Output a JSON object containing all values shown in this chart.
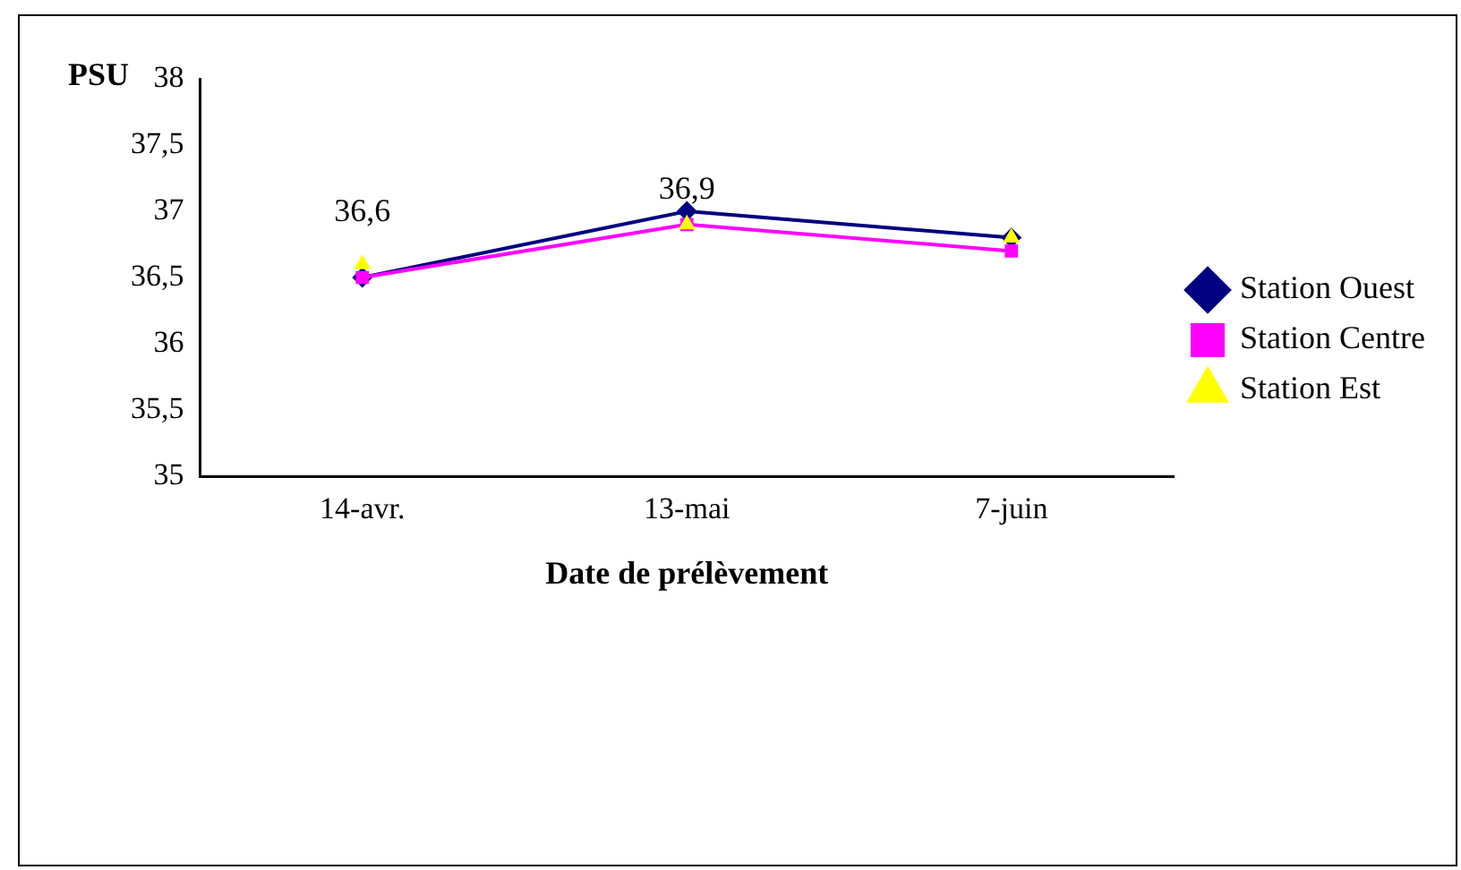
{
  "chart_data": {
    "type": "line",
    "ylabel": "PSU",
    "xlabel": "Date de prélèvement",
    "categories": [
      "14-avr.",
      "13-mai",
      "7-juin"
    ],
    "ylim": [
      35,
      38
    ],
    "yticks": [
      {
        "value": 35,
        "label": "35"
      },
      {
        "value": 35.5,
        "label": "35,5"
      },
      {
        "value": 36,
        "label": "36"
      },
      {
        "value": 36.5,
        "label": "36,5"
      },
      {
        "value": 37,
        "label": "37"
      },
      {
        "value": 37.5,
        "label": "37,5"
      },
      {
        "value": 38,
        "label": "38"
      }
    ],
    "grid": false,
    "legend": "right",
    "series": [
      {
        "name": "Station Ouest",
        "color": "#000080",
        "marker": "diamond",
        "values": [
          36.5,
          37.0,
          36.8
        ]
      },
      {
        "name": "Station Centre",
        "color": "#ff00ff",
        "marker": "square",
        "values": [
          36.5,
          36.9,
          36.7
        ]
      },
      {
        "name": "Station Est",
        "type": "scatter",
        "color": "#ffff00",
        "marker": "triangle",
        "values": [
          36.6,
          36.9,
          36.8
        ],
        "value_labels": [
          "36,6",
          "36,9",
          null
        ]
      }
    ]
  }
}
